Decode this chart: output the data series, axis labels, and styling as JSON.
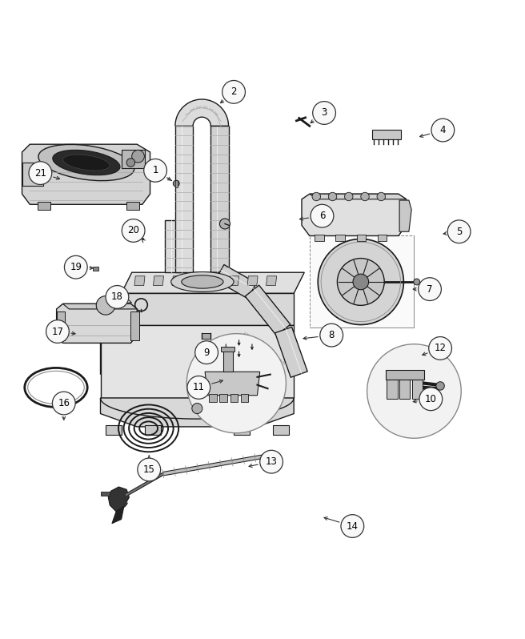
{
  "bg": "#ffffff",
  "lc": "#1a1a1a",
  "fig_w": 6.56,
  "fig_h": 7.98,
  "dpi": 100,
  "circle_r": 0.022,
  "circle_fc": "#f8f8f8",
  "circle_ec": "#333333",
  "font_size": 8.5,
  "labels": [
    [
      1,
      0.295,
      0.785,
      0.33,
      0.763
    ],
    [
      2,
      0.445,
      0.935,
      0.415,
      0.91
    ],
    [
      3,
      0.618,
      0.895,
      0.587,
      0.872
    ],
    [
      4,
      0.845,
      0.862,
      0.795,
      0.848
    ],
    [
      5,
      0.876,
      0.668,
      0.84,
      0.663
    ],
    [
      6,
      0.614,
      0.698,
      0.565,
      0.691
    ],
    [
      7,
      0.82,
      0.558,
      0.782,
      0.558
    ],
    [
      8,
      0.632,
      0.47,
      0.572,
      0.463
    ],
    [
      9,
      0.393,
      0.437,
      0.393,
      0.46
    ],
    [
      10,
      0.822,
      0.348,
      0.782,
      0.342
    ],
    [
      11,
      0.378,
      0.37,
      0.43,
      0.385
    ],
    [
      12,
      0.84,
      0.445,
      0.8,
      0.43
    ],
    [
      13,
      0.517,
      0.228,
      0.468,
      0.218
    ],
    [
      14,
      0.672,
      0.105,
      0.612,
      0.123
    ],
    [
      15,
      0.283,
      0.213,
      0.283,
      0.245
    ],
    [
      16,
      0.12,
      0.34,
      0.12,
      0.302
    ],
    [
      17,
      0.108,
      0.477,
      0.148,
      0.472
    ],
    [
      18,
      0.222,
      0.543,
      0.255,
      0.53
    ],
    [
      19,
      0.143,
      0.6,
      0.182,
      0.598
    ],
    [
      20,
      0.253,
      0.67,
      0.268,
      0.655
    ],
    [
      21,
      0.075,
      0.78,
      0.118,
      0.767
    ]
  ]
}
